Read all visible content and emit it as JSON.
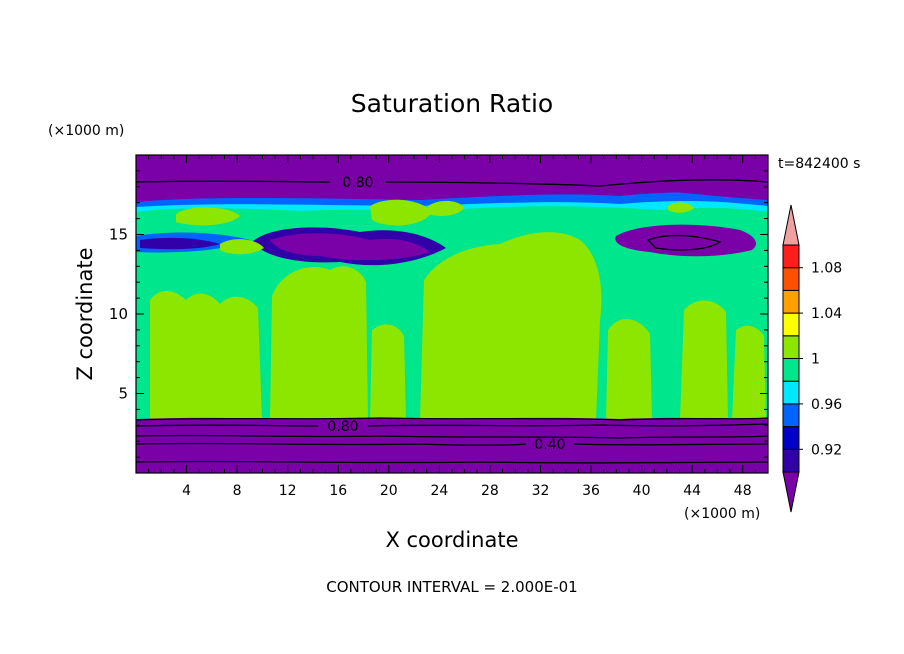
{
  "chart_data": {
    "type": "heatmap",
    "title": "Saturation Ratio",
    "xlabel": "X coordinate",
    "ylabel": "Z coordinate",
    "x_unit": "(×1000 m)",
    "y_unit": "(×1000 m)",
    "time_label": "t=842400 s",
    "footer": "CONTOUR INTERVAL = 2.000E-01",
    "xlim": [
      0,
      50
    ],
    "ylim": [
      0,
      20
    ],
    "xticks": [
      "4",
      "8",
      "12",
      "16",
      "20",
      "24",
      "28",
      "32",
      "36",
      "40",
      "44",
      "48"
    ],
    "yticks": [
      "5",
      "10",
      "15"
    ],
    "contour_labels": [
      "0.80",
      "0.80",
      "0.40"
    ],
    "colorbar": {
      "labels": [
        "1.08",
        "1.04",
        "1",
        "0.96",
        "0.92"
      ],
      "levels": [
        0.9,
        0.92,
        0.94,
        0.96,
        0.98,
        1.0,
        1.02,
        1.04,
        1.06,
        1.08,
        1.1
      ],
      "colors": [
        "#7a00a8",
        "#3200a8",
        "#0000c8",
        "#0064ff",
        "#00e8ff",
        "#00e68c",
        "#8ce600",
        "#ffff00",
        "#ffa000",
        "#ff5000",
        "#ff1e1e",
        "#f0a0a0"
      ]
    },
    "colors": {
      "purple": "#7a00a8",
      "indigo": "#3200a8",
      "blue": "#0064ff",
      "cyan": "#00e8ff",
      "teal": "#00e68c",
      "lime": "#8ce600"
    }
  }
}
